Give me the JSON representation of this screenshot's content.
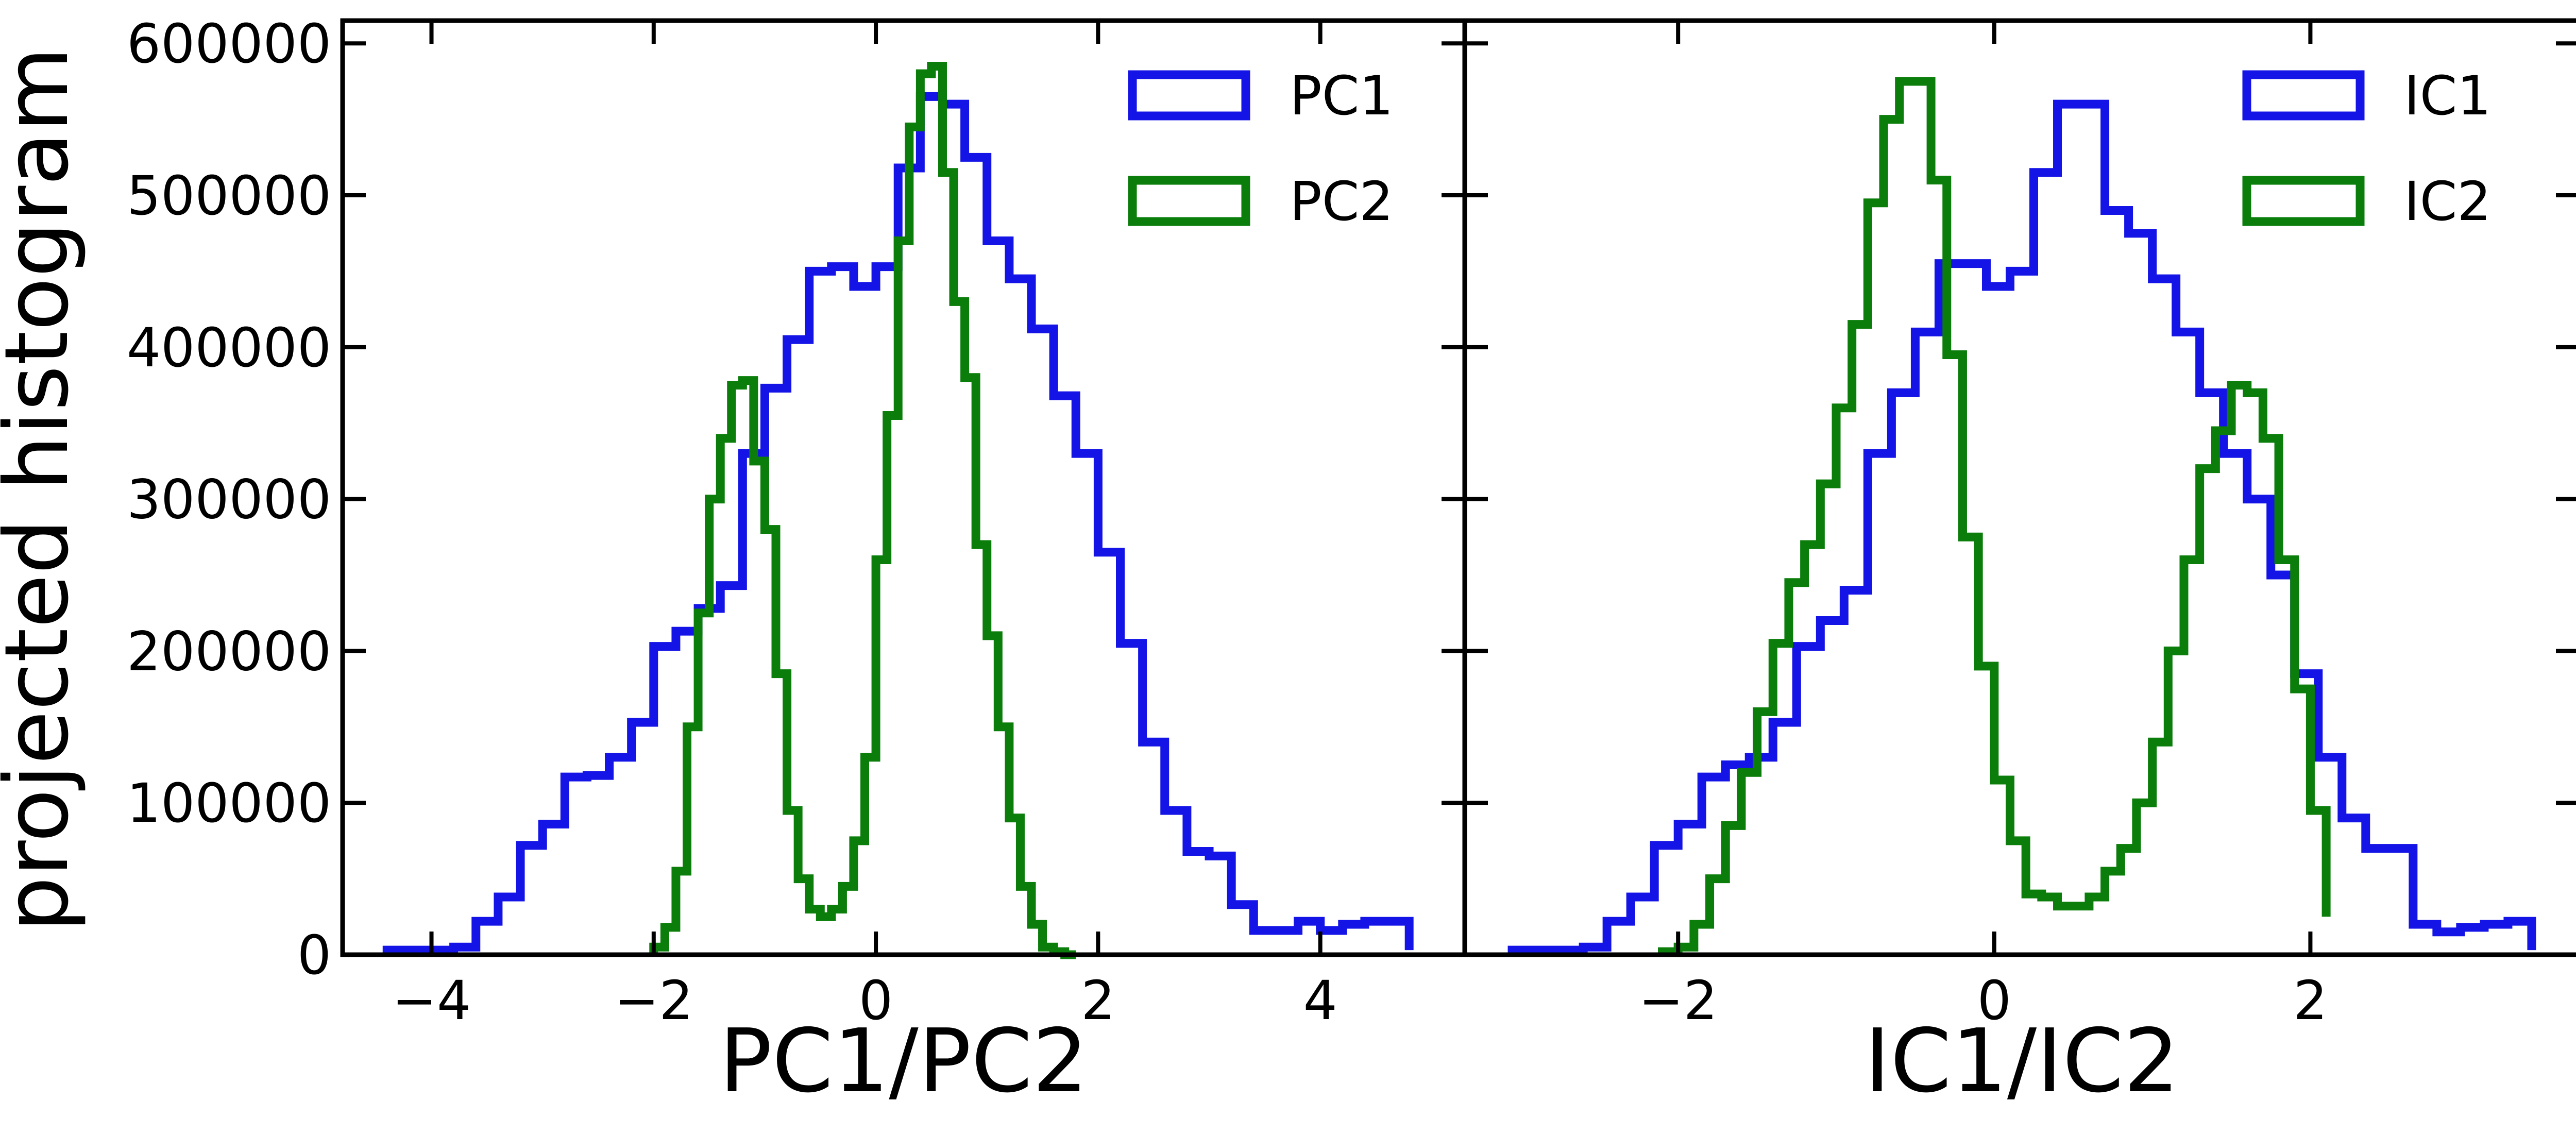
{
  "figure": {
    "ylabel": "projected histogram"
  },
  "chart_data": [
    {
      "type": "step",
      "xlabel": "PC1/PC2",
      "ylabel": "projected histogram",
      "xlim": [
        -4.8,
        5.3
      ],
      "ylim": [
        0,
        615000
      ],
      "xticks": [
        {
          "value": -4,
          "label": "−4"
        },
        {
          "value": -2,
          "label": "−2"
        },
        {
          "value": 0,
          "label": "0"
        },
        {
          "value": 2,
          "label": "2"
        },
        {
          "value": 4,
          "label": "4"
        }
      ],
      "yticks": [
        {
          "value": 0,
          "label": "0"
        },
        {
          "value": 100000,
          "label": "100000"
        },
        {
          "value": 200000,
          "label": "200000"
        },
        {
          "value": 300000,
          "label": "300000"
        },
        {
          "value": 400000,
          "label": "400000"
        },
        {
          "value": 500000,
          "label": "500000"
        },
        {
          "value": 600000,
          "label": "600000"
        }
      ],
      "legend_position": "top-right",
      "series": [
        {
          "name": "PC1",
          "color": "#1414e6",
          "edges": [
            -4.4,
            -4.2,
            -4.0,
            -3.8,
            -3.6,
            -3.4,
            -3.2,
            -3.0,
            -2.8,
            -2.6,
            -2.4,
            -2.2,
            -2.0,
            -1.8,
            -1.6,
            -1.4,
            -1.2,
            -1.0,
            -0.8,
            -0.6,
            -0.4,
            -0.2,
            0.0,
            0.2,
            0.4,
            0.6,
            0.8,
            1.0,
            1.2,
            1.4,
            1.6,
            1.8,
            2.0,
            2.2,
            2.4,
            2.6,
            2.8,
            3.0,
            3.2,
            3.4,
            3.6,
            3.8,
            4.0,
            4.2,
            4.4,
            4.6,
            4.8
          ],
          "values": [
            3000,
            3000,
            3000,
            5000,
            22000,
            38000,
            72000,
            86000,
            117000,
            118000,
            130000,
            153000,
            203000,
            213000,
            228000,
            243000,
            330000,
            373000,
            405000,
            450000,
            453000,
            440000,
            453000,
            518000,
            565000,
            560000,
            525000,
            470000,
            445000,
            412000,
            368000,
            330000,
            265000,
            205000,
            140000,
            95000,
            68000,
            65000,
            33000,
            16000,
            16000,
            22000,
            16000,
            20000,
            22000,
            22000,
            3000
          ]
        },
        {
          "name": "PC2",
          "color": "#0a7d0a",
          "edges": [
            -2.0,
            -1.9,
            -1.8,
            -1.7,
            -1.6,
            -1.5,
            -1.4,
            -1.3,
            -1.2,
            -1.1,
            -1.0,
            -0.9,
            -0.8,
            -0.7,
            -0.6,
            -0.5,
            -0.4,
            -0.3,
            -0.2,
            -0.1,
            0.0,
            0.1,
            0.2,
            0.3,
            0.4,
            0.5,
            0.6,
            0.7,
            0.8,
            0.9,
            1.0,
            1.1,
            1.2,
            1.3,
            1.4,
            1.5,
            1.6,
            1.7,
            1.8
          ],
          "values": [
            5000,
            18000,
            55000,
            150000,
            225000,
            300000,
            340000,
            375000,
            378000,
            325000,
            280000,
            185000,
            95000,
            50000,
            30000,
            25000,
            30000,
            45000,
            75000,
            130000,
            260000,
            355000,
            470000,
            545000,
            580000,
            585000,
            515000,
            430000,
            380000,
            270000,
            210000,
            150000,
            90000,
            45000,
            20000,
            5000,
            2000,
            0
          ]
        }
      ]
    },
    {
      "type": "step",
      "xlabel": "IC1/IC2",
      "xlim": [
        -3.35,
        3.7
      ],
      "ylim": [
        0,
        615000
      ],
      "xticks": [
        {
          "value": -2,
          "label": "−2"
        },
        {
          "value": 0,
          "label": "0"
        },
        {
          "value": 2,
          "label": "2"
        }
      ],
      "yticks": [
        {
          "value": 0,
          "label": ""
        },
        {
          "value": 100000,
          "label": ""
        },
        {
          "value": 200000,
          "label": ""
        },
        {
          "value": 300000,
          "label": ""
        },
        {
          "value": 400000,
          "label": ""
        },
        {
          "value": 500000,
          "label": ""
        },
        {
          "value": 600000,
          "label": ""
        }
      ],
      "legend_position": "top-right",
      "series": [
        {
          "name": "IC1",
          "color": "#1414e6",
          "edges": [
            -3.05,
            -2.9,
            -2.75,
            -2.6,
            -2.45,
            -2.3,
            -2.15,
            -2.0,
            -1.85,
            -1.7,
            -1.55,
            -1.4,
            -1.25,
            -1.1,
            -0.95,
            -0.8,
            -0.65,
            -0.5,
            -0.35,
            -0.2,
            -0.05,
            0.1,
            0.25,
            0.4,
            0.55,
            0.7,
            0.85,
            1.0,
            1.15,
            1.3,
            1.45,
            1.6,
            1.75,
            1.9,
            2.05,
            2.2,
            2.35,
            2.5,
            2.65,
            2.8,
            2.95,
            3.1,
            3.25,
            3.4
          ],
          "values": [
            3000,
            3000,
            3000,
            5000,
            22000,
            38000,
            72000,
            86000,
            117000,
            125000,
            130000,
            153000,
            203000,
            220000,
            240000,
            330000,
            370000,
            410000,
            455000,
            455000,
            440000,
            450000,
            515000,
            560000,
            560000,
            490000,
            475000,
            445000,
            410000,
            370000,
            330000,
            300000,
            250000,
            185000,
            130000,
            90000,
            70000,
            70000,
            20000,
            15000,
            18000,
            20000,
            22000,
            3000
          ]
        },
        {
          "name": "IC2",
          "color": "#0a7d0a",
          "edges": [
            -2.1,
            -2.0,
            -1.9,
            -1.8,
            -1.7,
            -1.6,
            -1.5,
            -1.4,
            -1.3,
            -1.2,
            -1.1,
            -1.0,
            -0.9,
            -0.8,
            -0.7,
            -0.6,
            -0.5,
            -0.4,
            -0.3,
            -0.2,
            -0.1,
            0.0,
            0.1,
            0.2,
            0.3,
            0.4,
            0.5,
            0.6,
            0.7,
            0.8,
            0.9,
            1.0,
            1.1,
            1.2,
            1.3,
            1.4,
            1.5,
            1.6,
            1.7,
            1.8,
            1.9,
            2.0,
            2.1
          ],
          "values": [
            2000,
            5000,
            20000,
            50000,
            85000,
            120000,
            160000,
            205000,
            245000,
            270000,
            310000,
            360000,
            415000,
            495000,
            550000,
            575000,
            575000,
            510000,
            395000,
            275000,
            190000,
            115000,
            75000,
            40000,
            38000,
            32000,
            32000,
            38000,
            55000,
            70000,
            100000,
            140000,
            200000,
            260000,
            320000,
            345000,
            375000,
            370000,
            340000,
            260000,
            175000,
            95000,
            25000
          ]
        }
      ]
    }
  ]
}
